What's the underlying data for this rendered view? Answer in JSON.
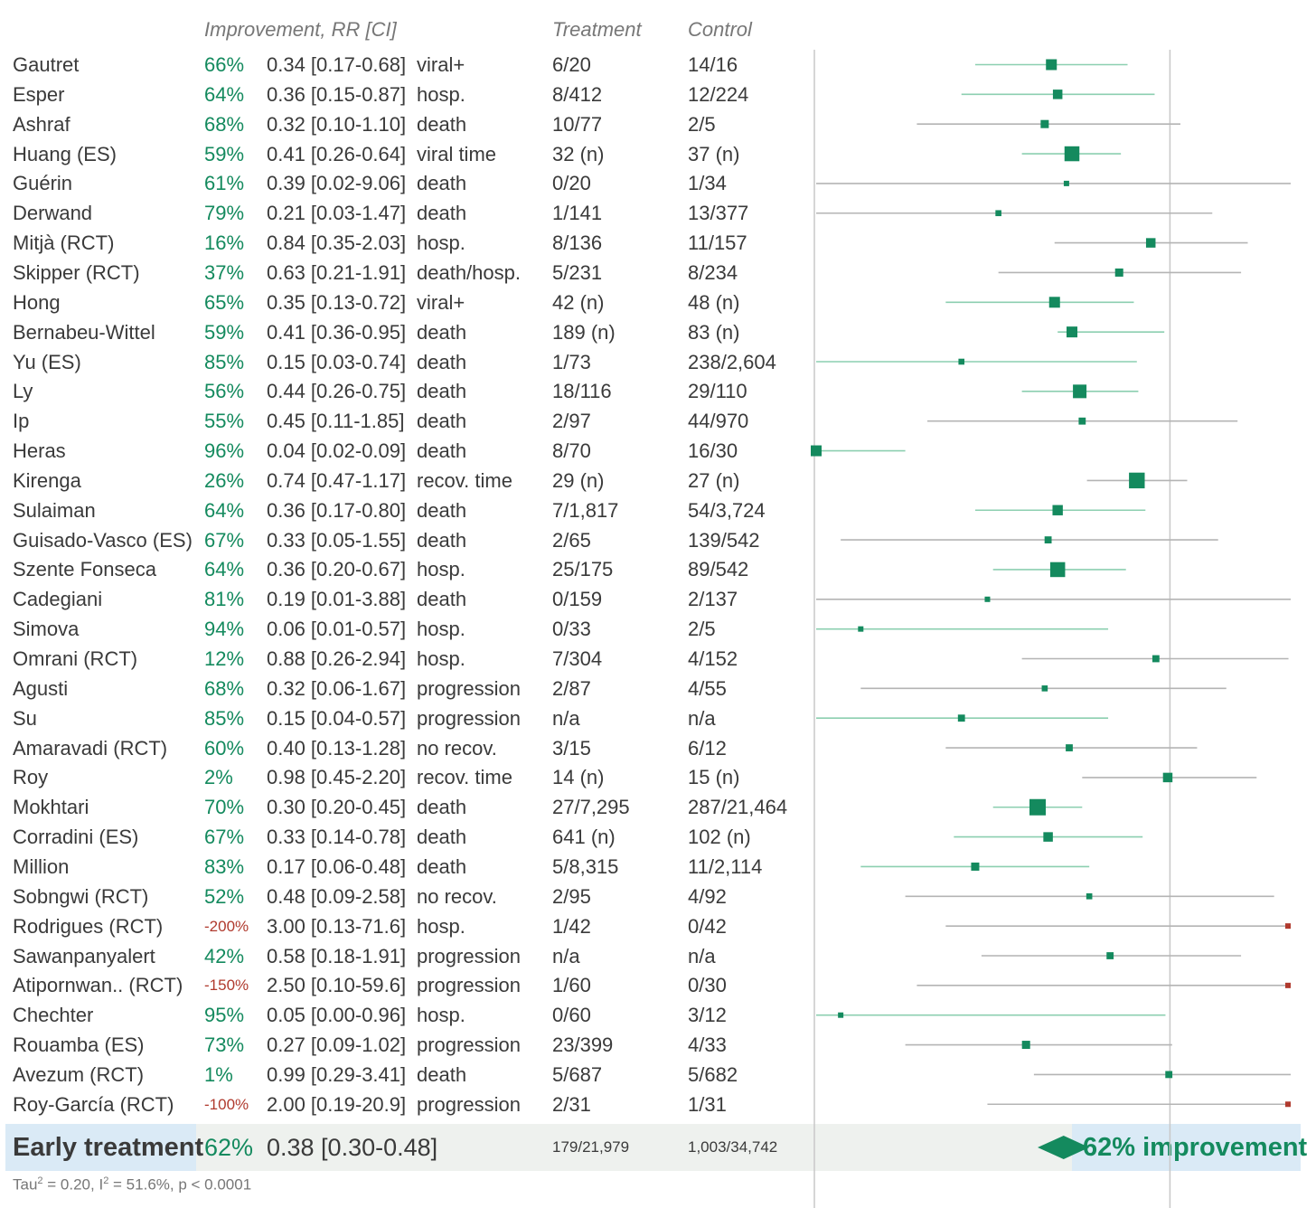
{
  "colors": {
    "improve": "#148a5e",
    "worse": "#b03a2e",
    "ci_green": "#8ccfb0",
    "ci_grey": "#b4b4b4",
    "text": "#3a3a3a",
    "header": "#777777"
  },
  "headers": {
    "improvement": "Improvement, RR [CI]",
    "treatment": "Treatment",
    "control": "Control"
  },
  "chart_data": {
    "type": "forest",
    "x_scale": "log",
    "xlim": [
      0.04,
      3.0
    ],
    "reference_line": 1,
    "studies": [
      {
        "name": "Gautret",
        "improvement": "66%",
        "rr_text": "0.34 [0.17-0.68]",
        "rr": 0.34,
        "lo": 0.17,
        "hi": 0.68,
        "outcome": "viral+",
        "treatment": "6/20",
        "control": "14/16",
        "weight": 3
      },
      {
        "name": "Esper",
        "improvement": "64%",
        "rr_text": "0.36 [0.15-0.87]",
        "rr": 0.36,
        "lo": 0.15,
        "hi": 0.87,
        "outcome": "hosp.",
        "treatment": "8/412",
        "control": "12/224",
        "weight": 2.5
      },
      {
        "name": "Ashraf",
        "improvement": "68%",
        "rr_text": "0.32 [0.10-1.10]",
        "rr": 0.32,
        "lo": 0.1,
        "hi": 1.1,
        "outcome": "death",
        "treatment": "10/77",
        "control": "2/5",
        "weight": 2
      },
      {
        "name": "Huang (ES)",
        "improvement": "59%",
        "rr_text": "0.41 [0.26-0.64]",
        "rr": 0.41,
        "lo": 0.26,
        "hi": 0.64,
        "outcome": "viral time",
        "treatment": "32 (n)",
        "control": "37 (n)",
        "weight": 4.5
      },
      {
        "name": "Guérin",
        "improvement": "61%",
        "rr_text": "0.39 [0.02-9.06]",
        "rr": 0.39,
        "lo": 0.02,
        "hi": 9.06,
        "outcome": "death",
        "treatment": "0/20",
        "control": "1/34",
        "weight": 1
      },
      {
        "name": "Derwand",
        "improvement": "79%",
        "rr_text": "0.21 [0.03-1.47]",
        "rr": 0.21,
        "lo": 0.03,
        "hi": 1.47,
        "outcome": "death",
        "treatment": "1/141",
        "control": "13/377",
        "weight": 1.2
      },
      {
        "name": "Mitjà (RCT)",
        "improvement": "16%",
        "rr_text": "0.84 [0.35-2.03]",
        "rr": 0.84,
        "lo": 0.35,
        "hi": 2.03,
        "outcome": "hosp.",
        "treatment": "8/136",
        "control": "11/157",
        "weight": 2.5
      },
      {
        "name": "Skipper (RCT)",
        "improvement": "37%",
        "rr_text": "0.63 [0.21-1.91]",
        "rr": 0.63,
        "lo": 0.21,
        "hi": 1.91,
        "outcome": "death/hosp.",
        "treatment": "5/231",
        "control": "8/234",
        "weight": 2
      },
      {
        "name": "Hong",
        "improvement": "65%",
        "rr_text": "0.35 [0.13-0.72]",
        "rr": 0.35,
        "lo": 0.13,
        "hi": 0.72,
        "outcome": "viral+",
        "treatment": "42 (n)",
        "control": "48 (n)",
        "weight": 3
      },
      {
        "name": "Bernabeu-Wittel",
        "improvement": "59%",
        "rr_text": "0.41 [0.36-0.95]",
        "rr": 0.41,
        "lo": 0.36,
        "hi": 0.95,
        "outcome": "death",
        "treatment": "189 (n)",
        "control": "83 (n)",
        "weight": 3
      },
      {
        "name": "Yu (ES)",
        "improvement": "85%",
        "rr_text": "0.15 [0.03-0.74]",
        "rr": 0.15,
        "lo": 0.03,
        "hi": 0.74,
        "outcome": "death",
        "treatment": "1/73",
        "control": "238/2,604",
        "weight": 1.2
      },
      {
        "name": "Ly",
        "improvement": "56%",
        "rr_text": "0.44 [0.26-0.75]",
        "rr": 0.44,
        "lo": 0.26,
        "hi": 0.75,
        "outcome": "death",
        "treatment": "18/116",
        "control": "29/110",
        "weight": 4
      },
      {
        "name": "Ip",
        "improvement": "55%",
        "rr_text": "0.45 [0.11-1.85]",
        "rr": 0.45,
        "lo": 0.11,
        "hi": 1.85,
        "outcome": "death",
        "treatment": "2/97",
        "control": "44/970",
        "weight": 1.6
      },
      {
        "name": "Heras",
        "improvement": "96%",
        "rr_text": "0.04 [0.02-0.09]",
        "rr": 0.04,
        "lo": 0.02,
        "hi": 0.09,
        "outcome": "death",
        "treatment": "8/70",
        "control": "16/30",
        "weight": 3
      },
      {
        "name": "Kirenga",
        "improvement": "26%",
        "rr_text": "0.74 [0.47-1.17]",
        "rr": 0.74,
        "lo": 0.47,
        "hi": 1.17,
        "outcome": "recov. time",
        "treatment": "29 (n)",
        "control": "27 (n)",
        "weight": 4.8
      },
      {
        "name": "Sulaiman",
        "improvement": "64%",
        "rr_text": "0.36 [0.17-0.80]",
        "rr": 0.36,
        "lo": 0.17,
        "hi": 0.8,
        "outcome": "death",
        "treatment": "7/1,817",
        "control": "54/3,724",
        "weight": 2.8
      },
      {
        "name": "Guisado-Vasco (ES)",
        "improvement": "67%",
        "rr_text": "0.33 [0.05-1.55]",
        "rr": 0.33,
        "lo": 0.05,
        "hi": 1.55,
        "outcome": "death",
        "treatment": "2/65",
        "control": "139/542",
        "weight": 1.6
      },
      {
        "name": "Szente Fonseca",
        "improvement": "64%",
        "rr_text": "0.36 [0.20-0.67]",
        "rr": 0.36,
        "lo": 0.2,
        "hi": 0.67,
        "outcome": "hosp.",
        "treatment": "25/175",
        "control": "89/542",
        "weight": 4.5
      },
      {
        "name": "Cadegiani",
        "improvement": "81%",
        "rr_text": "0.19 [0.01-3.88]",
        "rr": 0.19,
        "lo": 0.01,
        "hi": 3.88,
        "outcome": "death",
        "treatment": "0/159",
        "control": "2/137",
        "weight": 1
      },
      {
        "name": "Simova",
        "improvement": "94%",
        "rr_text": "0.06 [0.01-0.57]",
        "rr": 0.06,
        "lo": 0.01,
        "hi": 0.57,
        "outcome": "hosp.",
        "treatment": "0/33",
        "control": "2/5",
        "weight": 1
      },
      {
        "name": "Omrani (RCT)",
        "improvement": "12%",
        "rr_text": "0.88 [0.26-2.94]",
        "rr": 0.88,
        "lo": 0.26,
        "hi": 2.94,
        "outcome": "hosp.",
        "treatment": "7/304",
        "control": "4/152",
        "weight": 1.6
      },
      {
        "name": "Agusti",
        "improvement": "68%",
        "rr_text": "0.32 [0.06-1.67]",
        "rr": 0.32,
        "lo": 0.06,
        "hi": 1.67,
        "outcome": "progression",
        "treatment": "2/87",
        "control": "4/55",
        "weight": 1.2
      },
      {
        "name": "Su",
        "improvement": "85%",
        "rr_text": "0.15 [0.04-0.57]",
        "rr": 0.15,
        "lo": 0.04,
        "hi": 0.57,
        "outcome": "progression",
        "treatment": "n/a",
        "control": "n/a",
        "weight": 1.6
      },
      {
        "name": "Amaravadi (RCT)",
        "improvement": "60%",
        "rr_text": "0.40 [0.13-1.28]",
        "rr": 0.4,
        "lo": 0.13,
        "hi": 1.28,
        "outcome": "no recov.",
        "treatment": "3/15",
        "control": "6/12",
        "weight": 1.6
      },
      {
        "name": "Roy",
        "improvement": "2%",
        "rr_text": "0.98 [0.45-2.20]",
        "rr": 0.98,
        "lo": 0.45,
        "hi": 2.2,
        "outcome": "recov. time",
        "treatment": "14 (n)",
        "control": "15 (n)",
        "weight": 2.5
      },
      {
        "name": "Mokhtari",
        "improvement": "70%",
        "rr_text": "0.30 [0.20-0.45]",
        "rr": 0.3,
        "lo": 0.2,
        "hi": 0.45,
        "outcome": "death",
        "treatment": "27/7,295",
        "control": "287/21,464",
        "weight": 5
      },
      {
        "name": "Corradini (ES)",
        "improvement": "67%",
        "rr_text": "0.33 [0.14-0.78]",
        "rr": 0.33,
        "lo": 0.14,
        "hi": 0.78,
        "outcome": "death",
        "treatment": "641 (n)",
        "control": "102 (n)",
        "weight": 2.5
      },
      {
        "name": "Million",
        "improvement": "83%",
        "rr_text": "0.17 [0.06-0.48]",
        "rr": 0.17,
        "lo": 0.06,
        "hi": 0.48,
        "outcome": "death",
        "treatment": "5/8,315",
        "control": "11/2,114",
        "weight": 2
      },
      {
        "name": "Sobngwi (RCT)",
        "improvement": "52%",
        "rr_text": "0.48 [0.09-2.58]",
        "rr": 0.48,
        "lo": 0.09,
        "hi": 2.58,
        "outcome": "no recov.",
        "treatment": "2/95",
        "control": "4/92",
        "weight": 1.2
      },
      {
        "name": "Rodrigues (RCT)",
        "improvement": "-200%",
        "rr_text": "3.00 [0.13-71.6]",
        "rr": 3.0,
        "lo": 0.13,
        "hi": 71.6,
        "outcome": "hosp.",
        "treatment": "1/42",
        "control": "0/42",
        "weight": 1
      },
      {
        "name": "Sawanpanyalert",
        "improvement": "42%",
        "rr_text": "0.58 [0.18-1.91]",
        "rr": 0.58,
        "lo": 0.18,
        "hi": 1.91,
        "outcome": "progression",
        "treatment": "n/a",
        "control": "n/a",
        "weight": 1.6
      },
      {
        "name": "Atipornwan.. (RCT)",
        "improvement": "-150%",
        "rr_text": "2.50 [0.10-59.6]",
        "rr": 2.5,
        "lo": 0.1,
        "hi": 59.6,
        "outcome": "progression",
        "treatment": "1/60",
        "control": "0/30",
        "weight": 1
      },
      {
        "name": "Chechter",
        "improvement": "95%",
        "rr_text": "0.05 [0.00-0.96]",
        "rr": 0.05,
        "lo": 0.001,
        "hi": 0.96,
        "outcome": "hosp.",
        "treatment": "0/60",
        "control": "3/12",
        "weight": 1
      },
      {
        "name": "Rouamba (ES)",
        "improvement": "73%",
        "rr_text": "0.27 [0.09-1.02]",
        "rr": 0.27,
        "lo": 0.09,
        "hi": 1.02,
        "outcome": "progression",
        "treatment": "23/399",
        "control": "4/33",
        "weight": 2
      },
      {
        "name": "Avezum (RCT)",
        "improvement": "1%",
        "rr_text": "0.99 [0.29-3.41]",
        "rr": 0.99,
        "lo": 0.29,
        "hi": 3.41,
        "outcome": "death",
        "treatment": "5/687",
        "control": "5/682",
        "weight": 1.6
      },
      {
        "name": "Roy-García (RCT)",
        "improvement": "-100%",
        "rr_text": "2.00 [0.19-20.9]",
        "rr": 2.0,
        "lo": 0.19,
        "hi": 20.9,
        "outcome": "progression",
        "treatment": "2/31",
        "control": "1/31",
        "weight": 1
      }
    ],
    "summary": {
      "label": "Early treatment",
      "improvement": "62%",
      "rr_text": "0.38 [0.30-0.48]",
      "rr": 0.38,
      "lo": 0.3,
      "hi": 0.48,
      "treatment": "179/21,979",
      "control": "1,003/34,742",
      "result_text": "62% improvement"
    },
    "heterogeneity": {
      "tau_label": "Tau",
      "tau_sup": "2",
      "tau_value": " = 0.20, I",
      "i2_sup": "2",
      "rest": " = 51.6%, p < 0.0001"
    }
  }
}
